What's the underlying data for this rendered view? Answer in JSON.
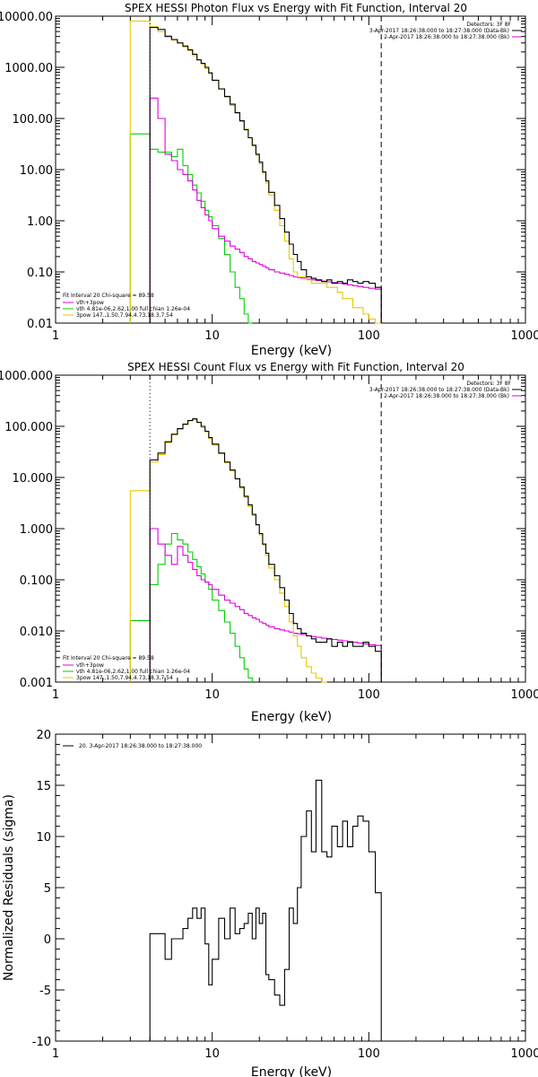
{
  "panel1": {
    "title": "SPEX HESSI Photon Flux vs Energy with Fit Function, Interval 20",
    "xlabel": "Energy (keV)",
    "xticks": [
      "1",
      "10",
      "100",
      "1000"
    ],
    "yticks": [
      "10000.00",
      "1000.00",
      "100.00",
      "10.00",
      "1.00",
      "0.10",
      "0.01"
    ],
    "legend_tr": [
      "Detectors: 3F 8F",
      "3-Apr-2017 18:26:38.000 to 18:27:38.000 (Data-Bk)",
      "2-Apr-2017 18:26:38.000 to 18:27:38.000 (Bk)"
    ],
    "legend_bl": [
      "Fit Interval 20   Chi-square = 89.58",
      "vth+3pow",
      "vth 4.81e-06,2.62,1.00  full chian 1.26e-04",
      "3pow 147.,1.50,7.94,4.73,18.3,7.54"
    ]
  },
  "panel2": {
    "title": "SPEX HESSI Count Flux vs Energy with Fit Function, Interval 20",
    "xlabel": "Energy (keV)",
    "xticks": [
      "1",
      "10",
      "100",
      "1000"
    ],
    "yticks": [
      "1000.000",
      "100.000",
      "10.000",
      "1.000",
      "0.100",
      "0.010",
      "0.001"
    ],
    "legend_tr": [
      "Detectors: 3F 8F",
      "3-Apr-2017 18:26:38.000 to 18:27:38.000 (Data-Bk)",
      "2-Apr-2017 18:26:38.000 to 18:27:38.000 (Bk)"
    ],
    "legend_bl": [
      "Fit Interval 20   Chi-square = 89.58",
      "vth+3pow",
      "vth 4.81e-06,2.62,1.00  full chian 1.26e-04",
      "3pow 147.,1.50,7.94,4.73,18.3,7.54"
    ]
  },
  "panel3": {
    "xlabel": "Energy (keV)",
    "ylabel": "Normalized Residuals (sigma)",
    "xticks": [
      "1",
      "10",
      "100",
      "1000"
    ],
    "yticks": [
      "20",
      "15",
      "10",
      "5",
      "0",
      "-5",
      "-10"
    ],
    "legend": "20.  3-Apr-2017 18:26:38.000 to 18:27:38.000"
  },
  "colors": {
    "data": "#000000",
    "total": "#e8c800",
    "thermal": "#00d000",
    "powerlaw": "#e000e0",
    "bkg": "#e000e0"
  },
  "chart_data": [
    {
      "type": "line",
      "name": "Photon flux",
      "xscale": "log",
      "yscale": "log",
      "xlim": [
        1,
        1000
      ],
      "ylim": [
        0.01,
        10000
      ],
      "edges": [
        3.0,
        4.0,
        4.5,
        5.0,
        5.5,
        6.0,
        6.5,
        7.0,
        7.5,
        8.0,
        8.5,
        9.0,
        9.5,
        10.0,
        11.0,
        12.0,
        13.0,
        14.0,
        15.0,
        16.0,
        17.0,
        18.0,
        19.0,
        20.0,
        21.0,
        22.0,
        23.0,
        25.0,
        27.0,
        29.0,
        31.0,
        33.0,
        35.0,
        37.0,
        40.0,
        43.0,
        46.0,
        50.0,
        54.0,
        58.0,
        63.0,
        68.0,
        73.0,
        79.0,
        85.0,
        92.0,
        100.0,
        110.0,
        120.0
      ],
      "series": [
        {
          "name": "data-bk",
          "values": [
            null,
            6000,
            5500,
            4000,
            3500,
            3000,
            2600,
            2200,
            1800,
            1400,
            1200,
            1000,
            780,
            560,
            380,
            270,
            190,
            130,
            90,
            60,
            42,
            30,
            20,
            14,
            9,
            6,
            3.6,
            2.0,
            1.1,
            0.6,
            0.35,
            0.22,
            0.16,
            0.11,
            0.08,
            0.075,
            0.07,
            0.065,
            0.07,
            0.06,
            0.065,
            0.06,
            0.07,
            0.065,
            0.06,
            0.065,
            0.06,
            0.05
          ]
        },
        {
          "name": "vth+3pow",
          "values": [
            8000,
            6200,
            5000,
            4200,
            3400,
            3000,
            2500,
            2100,
            1700,
            1400,
            1150,
            950,
            760,
            560,
            370,
            260,
            180,
            125,
            88,
            62,
            42,
            29,
            19,
            13,
            8.5,
            5.5,
            3.2,
            1.6,
            0.8,
            0.4,
            0.18,
            0.1,
            0.08,
            0.08,
            0.07,
            0.06,
            0.06,
            0.06,
            0.05,
            0.05,
            0.04,
            0.03,
            0.03,
            0.02,
            0.02,
            0.015,
            0.012,
            0.01
          ]
        },
        {
          "name": "vth",
          "values": [
            50,
            25,
            22,
            22,
            18,
            25,
            12,
            8,
            5,
            3.5,
            2.4,
            1.6,
            1.2,
            0.8,
            0.45,
            0.22,
            0.1,
            0.05,
            0.03,
            0.015,
            0.008,
            null,
            null,
            null,
            null,
            null,
            null,
            null,
            null,
            null,
            null,
            null,
            null,
            null,
            null,
            null,
            null,
            null,
            null,
            null,
            null,
            null,
            null,
            null,
            null,
            null,
            null,
            null
          ]
        },
        {
          "name": "3pow",
          "values": [
            null,
            250,
            100,
            20,
            15,
            10,
            8,
            6,
            4,
            2.5,
            1.8,
            1.3,
            1.0,
            0.7,
            0.5,
            0.4,
            0.32,
            0.28,
            0.24,
            0.2,
            0.18,
            0.16,
            0.15,
            0.14,
            0.13,
            0.12,
            0.11,
            0.1,
            0.095,
            0.09,
            0.085,
            0.08,
            0.078,
            0.076,
            0.072,
            0.07,
            0.068,
            0.066,
            0.064,
            0.062,
            0.06,
            0.058,
            0.056,
            0.054,
            0.052,
            0.05,
            0.048,
            0.046
          ]
        }
      ],
      "annotations": [
        {
          "type": "vline",
          "x": 120,
          "style": "dashed"
        },
        {
          "type": "vline",
          "x": 4.0,
          "style": "dotted"
        }
      ]
    },
    {
      "type": "line",
      "name": "Count flux",
      "xscale": "log",
      "yscale": "log",
      "xlim": [
        1,
        1000
      ],
      "ylim": [
        0.001,
        1000
      ],
      "edges": [
        3.0,
        4.0,
        4.5,
        5.0,
        5.5,
        6.0,
        6.5,
        7.0,
        7.5,
        8.0,
        8.5,
        9.0,
        9.5,
        10.0,
        11.0,
        12.0,
        13.0,
        14.0,
        15.0,
        16.0,
        17.0,
        18.0,
        19.0,
        20.0,
        21.0,
        22.0,
        23.0,
        25.0,
        27.0,
        29.0,
        31.0,
        33.0,
        35.0,
        37.0,
        40.0,
        43.0,
        46.0,
        50.0,
        54.0,
        58.0,
        63.0,
        68.0,
        73.0,
        79.0,
        85.0,
        92.0,
        100.0,
        110.0,
        120.0
      ],
      "series": [
        {
          "name": "data-bk",
          "values": [
            null,
            22,
            30,
            50,
            70,
            90,
            110,
            130,
            140,
            120,
            100,
            80,
            60,
            45,
            30,
            20,
            14,
            9.5,
            6.5,
            4.3,
            2.9,
            1.9,
            1.2,
            0.8,
            0.5,
            0.33,
            0.2,
            0.12,
            0.07,
            0.04,
            0.022,
            0.014,
            0.011,
            0.009,
            0.008,
            0.007,
            0.006,
            0.006,
            0.007,
            0.005,
            0.006,
            0.005,
            0.006,
            0.005,
            0.005,
            0.006,
            0.005,
            0.004
          ]
        },
        {
          "name": "vth+3pow",
          "values": [
            5.5,
            20,
            28,
            48,
            68,
            88,
            108,
            128,
            135,
            118,
            95,
            78,
            58,
            43,
            29,
            19.5,
            13.5,
            9.2,
            6.2,
            4.1,
            2.7,
            1.8,
            1.15,
            0.75,
            0.48,
            0.3,
            0.17,
            0.1,
            0.055,
            0.03,
            0.015,
            0.008,
            0.005,
            0.003,
            0.002,
            0.0015,
            0.0012,
            0.001,
            null,
            null,
            null,
            null,
            null,
            null,
            null,
            null,
            null,
            null
          ]
        },
        {
          "name": "vth",
          "values": [
            0.016,
            0.08,
            0.2,
            0.5,
            0.8,
            0.6,
            0.5,
            0.35,
            0.25,
            0.18,
            0.13,
            0.09,
            0.065,
            0.04,
            0.025,
            0.015,
            0.009,
            0.005,
            0.003,
            0.0018,
            0.0012,
            null,
            null,
            null,
            null,
            null,
            null,
            null,
            null,
            null,
            null,
            null,
            null,
            null,
            null,
            null,
            null,
            null,
            null,
            null,
            null,
            null,
            null,
            null,
            null,
            null,
            null,
            null
          ]
        },
        {
          "name": "3pow",
          "values": [
            null,
            1.0,
            0.5,
            0.3,
            0.2,
            0.45,
            0.3,
            0.22,
            0.16,
            0.12,
            0.1,
            0.09,
            0.08,
            0.065,
            0.05,
            0.04,
            0.035,
            0.03,
            0.026,
            0.022,
            0.02,
            0.018,
            0.017,
            0.015,
            0.014,
            0.013,
            0.012,
            0.011,
            0.0105,
            0.01,
            0.0095,
            0.009,
            0.0088,
            0.0085,
            0.008,
            0.0078,
            0.0075,
            0.0072,
            0.007,
            0.0068,
            0.0066,
            0.0064,
            0.0062,
            0.006,
            0.0058,
            0.0056,
            0.0054,
            0.0052
          ]
        }
      ],
      "annotations": [
        {
          "type": "vline",
          "x": 120,
          "style": "dashed"
        },
        {
          "type": "vline",
          "x": 4.0,
          "style": "dotted"
        }
      ]
    },
    {
      "type": "line",
      "name": "Normalized residuals",
      "xscale": "log",
      "xlim": [
        1,
        1000
      ],
      "ylim": [
        -10,
        20
      ],
      "edges": [
        4.0,
        5.0,
        5.5,
        6.5,
        7.0,
        7.5,
        8.0,
        8.5,
        9.0,
        9.5,
        10.0,
        11.0,
        12.0,
        13.0,
        14.0,
        15.0,
        16.0,
        17.0,
        18.0,
        19.0,
        20.0,
        21.0,
        22.0,
        23.0,
        25.0,
        27.0,
        29.0,
        31.0,
        33.0,
        35.0,
        37.0,
        40.0,
        43.0,
        46.0,
        50.0,
        54.0,
        58.0,
        63.0,
        68.0,
        73.0,
        79.0,
        85.0,
        92.0,
        100.0,
        110.0,
        120.0
      ],
      "values": [
        0.5,
        -2.0,
        0.0,
        1.0,
        2.0,
        3.0,
        2.0,
        3.0,
        -0.5,
        -4.5,
        -2.0,
        2.0,
        0.0,
        3.0,
        0.5,
        1.0,
        1.5,
        2.5,
        0.0,
        3.0,
        1.5,
        2.5,
        -3.5,
        -4.0,
        -5.5,
        -6.5,
        -3.0,
        3.0,
        1.5,
        5.0,
        10.0,
        12.5,
        8.5,
        15.5,
        8.5,
        8.0,
        11.0,
        9.0,
        11.5,
        9.0,
        11.0,
        12.0,
        11.5,
        8.5,
        4.5
      ],
      "title": "",
      "ylabel": "Normalized Residuals (sigma)"
    }
  ]
}
